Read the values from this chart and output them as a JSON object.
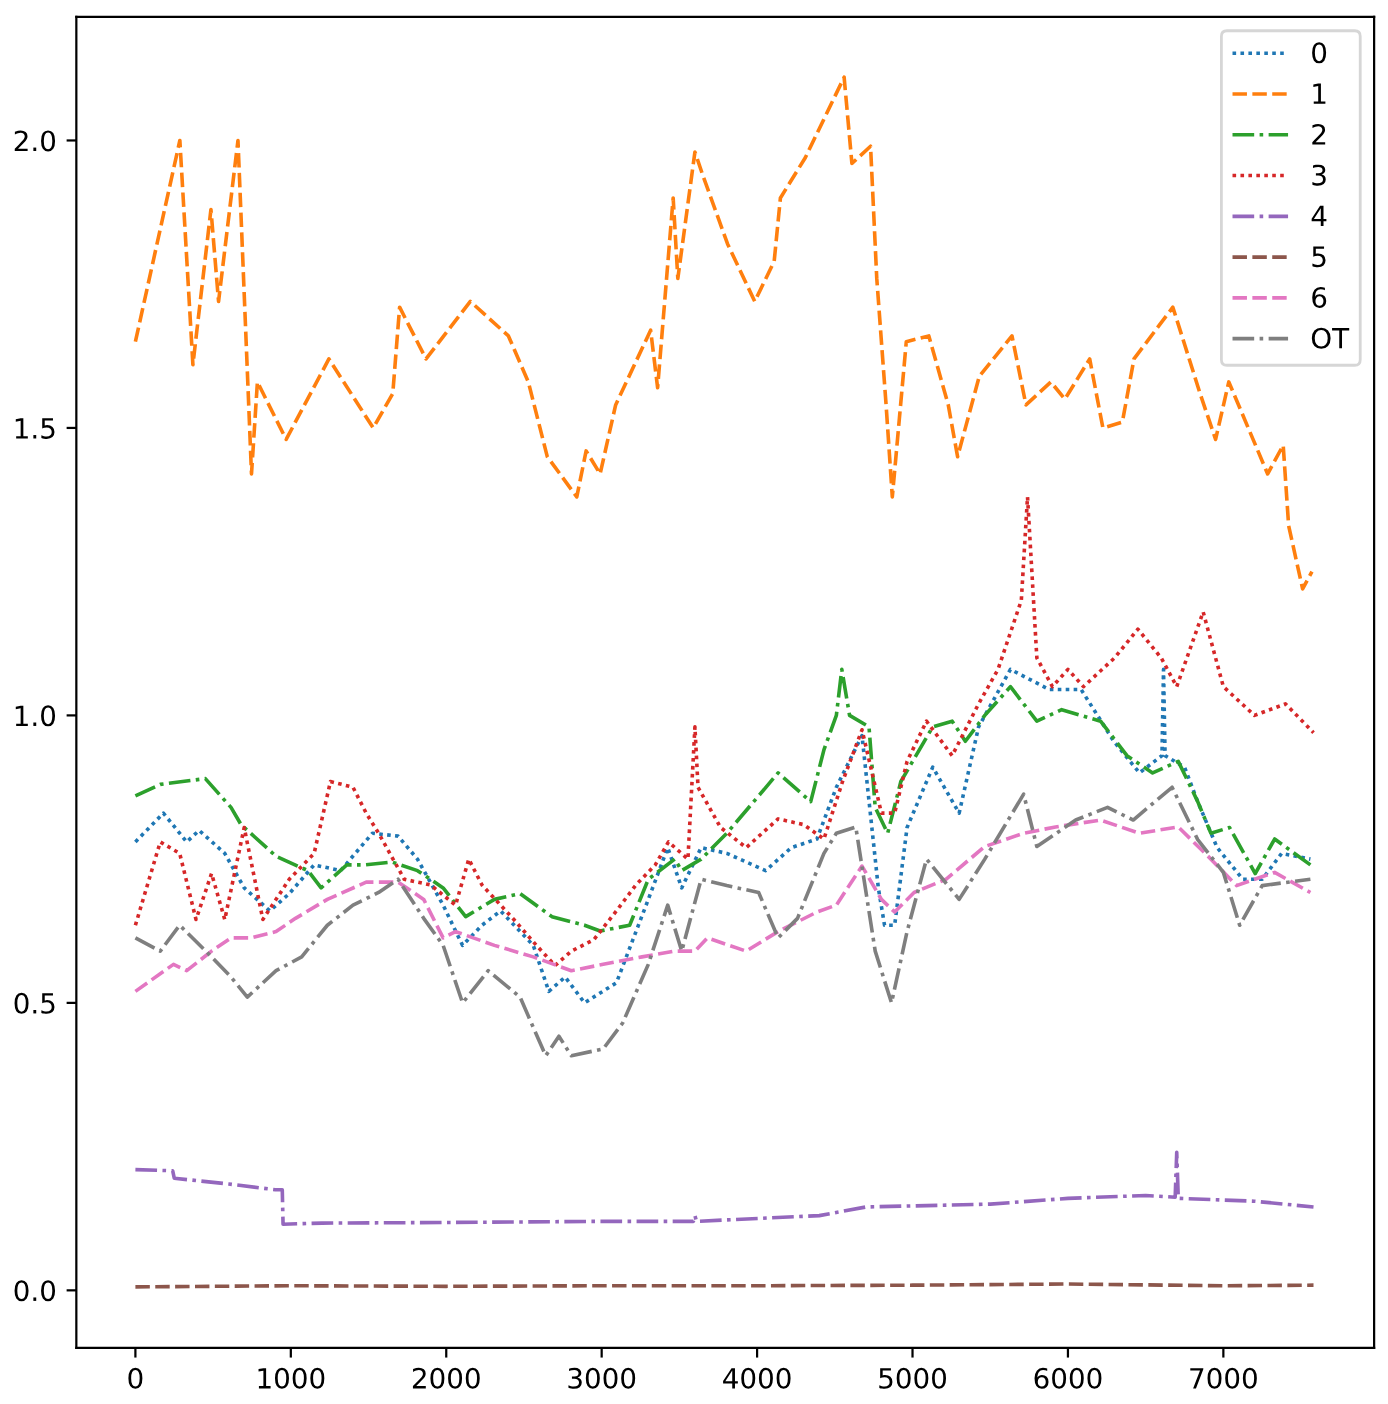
{
  "chart_data": {
    "type": "line",
    "xlim": [
      -380,
      7970
    ],
    "ylim": [
      -0.1,
      2.215
    ],
    "xticks": [
      0,
      1000,
      2000,
      3000,
      4000,
      5000,
      6000,
      7000
    ],
    "yticks": [
      {
        "value": 0,
        "label": "0.0"
      },
      {
        "value": 0.5,
        "label": "0.5"
      },
      {
        "value": 1,
        "label": "1.0"
      },
      {
        "value": 1.5,
        "label": "1.5"
      },
      {
        "value": 2,
        "label": "2.0"
      }
    ],
    "grid": false,
    "legend": "top right",
    "series": [
      {
        "name": "0",
        "color": "#1f77b4",
        "line_style": "dotted",
        "x": [
          0,
          180,
          330,
          410,
          575,
          700,
          865,
          990,
          1150,
          1320,
          1525,
          1690,
          1815,
          1980,
          2105,
          2230,
          2350,
          2560,
          2660,
          2765,
          2890,
          3095,
          3300,
          3425,
          3515,
          3640,
          3805,
          4055,
          4220,
          4385,
          4510,
          4675,
          4780,
          4820,
          4885,
          4965,
          5130,
          5300,
          5425,
          5630,
          5880,
          6085,
          6295,
          6460,
          6605,
          6615,
          6625,
          6750,
          6835,
          6960,
          7125,
          7250,
          7375,
          7560
        ],
        "values": [
          0.78,
          0.83,
          0.78,
          0.8,
          0.76,
          0.7,
          0.66,
          0.69,
          0.74,
          0.73,
          0.795,
          0.79,
          0.75,
          0.67,
          0.6,
          0.635,
          0.66,
          0.6,
          0.52,
          0.545,
          0.5,
          0.535,
          0.68,
          0.77,
          0.7,
          0.77,
          0.76,
          0.73,
          0.77,
          0.785,
          0.875,
          0.965,
          0.7,
          0.635,
          0.635,
          0.805,
          0.91,
          0.83,
          0.98,
          1.08,
          1.045,
          1.045,
          0.955,
          0.9,
          0.93,
          1.08,
          0.93,
          0.91,
          0.85,
          0.77,
          0.715,
          0.715,
          0.76,
          0.75
        ]
      },
      {
        "name": "1",
        "color": "#ff7f0e",
        "line_style": "dashed",
        "x": [
          0,
          286,
          370,
          486,
          535,
          660,
          747,
          785,
          970,
          1245,
          1530,
          1656,
          1700,
          1870,
          2155,
          2400,
          2528,
          2650,
          2840,
          2900,
          2990,
          3090,
          3315,
          3360,
          3460,
          3490,
          3600,
          3650,
          3810,
          3985,
          4110,
          4150,
          4310,
          4560,
          4610,
          4730,
          4770,
          4830,
          4870,
          4960,
          5105,
          5230,
          5290,
          5430,
          5640,
          5730,
          5890,
          5980,
          6140,
          6225,
          6350,
          6425,
          6675,
          6850,
          6950,
          7035,
          7285,
          7385,
          7420,
          7510,
          7570
        ],
        "values": [
          1.65,
          2.0,
          1.61,
          1.88,
          1.72,
          2.0,
          1.42,
          1.58,
          1.48,
          1.62,
          1.5,
          1.56,
          1.71,
          1.62,
          1.72,
          1.66,
          1.58,
          1.45,
          1.38,
          1.46,
          1.42,
          1.54,
          1.67,
          1.57,
          1.9,
          1.76,
          1.98,
          1.94,
          1.82,
          1.72,
          1.79,
          1.9,
          1.97,
          2.11,
          1.96,
          1.99,
          1.76,
          1.54,
          1.38,
          1.65,
          1.66,
          1.54,
          1.45,
          1.59,
          1.66,
          1.54,
          1.58,
          1.55,
          1.62,
          1.5,
          1.51,
          1.62,
          1.71,
          1.56,
          1.48,
          1.58,
          1.42,
          1.47,
          1.33,
          1.22,
          1.25
        ]
      },
      {
        "name": "2",
        "color": "#2ca02c",
        "line_style": "dashdot",
        "x": [
          0,
          160,
          450,
          615,
          680,
          905,
          1110,
          1195,
          1360,
          1480,
          1650,
          1815,
          1980,
          2125,
          2310,
          2475,
          2680,
          2890,
          2990,
          3180,
          3300,
          3470,
          3515,
          3640,
          3805,
          4010,
          4135,
          4345,
          4430,
          4510,
          4545,
          4595,
          4720,
          4760,
          4840,
          4925,
          5130,
          5255,
          5340,
          5465,
          5630,
          5800,
          5960,
          6210,
          6380,
          6545,
          6710,
          6835,
          6920,
          7040,
          7205,
          7330,
          7560
        ],
        "values": [
          0.86,
          0.88,
          0.89,
          0.84,
          0.81,
          0.755,
          0.73,
          0.7,
          0.74,
          0.74,
          0.745,
          0.73,
          0.7,
          0.65,
          0.68,
          0.69,
          0.65,
          0.635,
          0.625,
          0.635,
          0.715,
          0.75,
          0.73,
          0.75,
          0.795,
          0.86,
          0.9,
          0.85,
          0.94,
          1.0,
          1.08,
          1.0,
          0.98,
          0.84,
          0.795,
          0.885,
          0.98,
          0.99,
          0.955,
          1.0,
          1.05,
          0.99,
          1.01,
          0.99,
          0.93,
          0.9,
          0.92,
          0.85,
          0.795,
          0.805,
          0.725,
          0.785,
          0.74
        ]
      },
      {
        "name": "3",
        "color": "#d62728",
        "line_style": "dotted",
        "x": [
          0,
          160,
          285,
          390,
          490,
          575,
          700,
          820,
          990,
          1150,
          1255,
          1400,
          1485,
          1565,
          1730,
          1900,
          2060,
          2145,
          2230,
          2435,
          2580,
          2700,
          2805,
          2950,
          3095,
          3220,
          3345,
          3430,
          3555,
          3600,
          3620,
          3765,
          3930,
          4135,
          4300,
          4430,
          4550,
          4675,
          4800,
          4885,
          4965,
          5090,
          5255,
          5425,
          5550,
          5700,
          5740,
          5800,
          5900,
          6000,
          6100,
          6300,
          6450,
          6600,
          6700,
          6870,
          7000,
          7200,
          7400,
          7580
        ],
        "values": [
          0.635,
          0.78,
          0.76,
          0.645,
          0.725,
          0.645,
          0.805,
          0.645,
          0.715,
          0.76,
          0.885,
          0.875,
          0.83,
          0.795,
          0.715,
          0.705,
          0.67,
          0.75,
          0.705,
          0.645,
          0.6,
          0.565,
          0.59,
          0.61,
          0.66,
          0.705,
          0.74,
          0.78,
          0.75,
          0.98,
          0.875,
          0.805,
          0.77,
          0.82,
          0.81,
          0.785,
          0.885,
          0.975,
          0.83,
          0.83,
          0.92,
          0.99,
          0.93,
          1.02,
          1.08,
          1.2,
          1.38,
          1.1,
          1.05,
          1.08,
          1.05,
          1.1,
          1.15,
          1.1,
          1.05,
          1.18,
          1.05,
          1.0,
          1.02,
          0.97
        ]
      },
      {
        "name": "4",
        "color": "#9467bd",
        "line_style": "dashdot",
        "x": [
          0,
          240,
          250,
          600,
          900,
          945,
          950,
          1200,
          2000,
          3000,
          3590,
          3600,
          3610,
          4400,
          4700,
          5500,
          6000,
          6500,
          6690,
          6700,
          6710,
          7200,
          7580
        ],
        "values": [
          0.21,
          0.208,
          0.195,
          0.185,
          0.175,
          0.175,
          0.115,
          0.117,
          0.118,
          0.12,
          0.12,
          0.13,
          0.12,
          0.13,
          0.145,
          0.15,
          0.16,
          0.165,
          0.162,
          0.24,
          0.16,
          0.155,
          0.145
        ]
      },
      {
        "name": "5",
        "color": "#8c564b",
        "line_style": "dashed",
        "x": [
          0,
          1000,
          2000,
          3000,
          4000,
          5000,
          6000,
          7000,
          7580
        ],
        "values": [
          0.006,
          0.008,
          0.007,
          0.008,
          0.008,
          0.009,
          0.011,
          0.008,
          0.009
        ]
      },
      {
        "name": "6",
        "color": "#e377c2",
        "line_style": "dashed",
        "x": [
          0,
          245,
          330,
          490,
          615,
          740,
          905,
          1030,
          1235,
          1485,
          1690,
          1855,
          1980,
          2060,
          2310,
          2560,
          2805,
          3010,
          3260,
          3470,
          3600,
          3680,
          3930,
          4135,
          4385,
          4510,
          4675,
          4800,
          4885,
          5010,
          5215,
          5465,
          5715,
          5920,
          6210,
          6460,
          6710,
          6920,
          7085,
          7330,
          7560
        ],
        "values": [
          0.52,
          0.567,
          0.556,
          0.59,
          0.613,
          0.613,
          0.624,
          0.647,
          0.68,
          0.71,
          0.71,
          0.68,
          0.613,
          0.624,
          0.6,
          0.58,
          0.556,
          0.567,
          0.58,
          0.59,
          0.59,
          0.613,
          0.59,
          0.624,
          0.658,
          0.67,
          0.738,
          0.68,
          0.658,
          0.692,
          0.715,
          0.772,
          0.795,
          0.806,
          0.818,
          0.795,
          0.806,
          0.75,
          0.704,
          0.727,
          0.692
        ]
      },
      {
        "name": "OT",
        "color": "#7f7f7f",
        "line_style": "dashdot",
        "x": [
          0,
          160,
          285,
          490,
          615,
          720,
          905,
          1070,
          1235,
          1400,
          1565,
          1690,
          1855,
          1980,
          2105,
          2270,
          2475,
          2640,
          2725,
          2805,
          3010,
          3135,
          3300,
          3425,
          3515,
          3640,
          3805,
          4010,
          4135,
          4260,
          4430,
          4510,
          4635,
          4760,
          4865,
          4965,
          5090,
          5300,
          5465,
          5715,
          5800,
          6050,
          6255,
          6420,
          6670,
          6835,
          7000,
          7105,
          7250,
          7560
        ],
        "values": [
          0.613,
          0.59,
          0.635,
          0.58,
          0.545,
          0.51,
          0.556,
          0.58,
          0.635,
          0.67,
          0.692,
          0.715,
          0.647,
          0.6,
          0.5,
          0.556,
          0.51,
          0.408,
          0.442,
          0.408,
          0.42,
          0.465,
          0.567,
          0.67,
          0.59,
          0.715,
          0.704,
          0.692,
          0.613,
          0.647,
          0.76,
          0.795,
          0.806,
          0.59,
          0.5,
          0.624,
          0.75,
          0.68,
          0.75,
          0.863,
          0.772,
          0.818,
          0.84,
          0.818,
          0.875,
          0.784,
          0.727,
          0.635,
          0.704,
          0.715
        ]
      }
    ]
  }
}
